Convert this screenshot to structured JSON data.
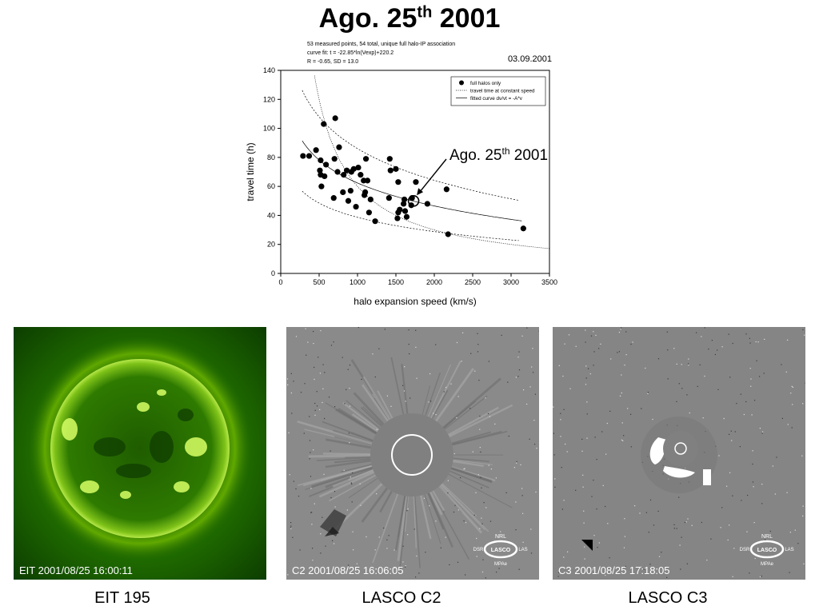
{
  "page": {
    "title_main": "Ago. 25",
    "title_sup": "th",
    "title_year": "2001"
  },
  "chart_data": {
    "type": "scatter",
    "header_lines": [
      "53 measured points, 54 total, unique full halo-IP association",
      "curve fit: t = -22.85*ln(Vexp)+220.2",
      "R = -0.65, SD = 13.0"
    ],
    "date": "03.09.2001",
    "xlabel": "halo expansion speed (km/s)",
    "ylabel": "travel time (h)",
    "xlim": [
      0,
      3500
    ],
    "ylim": [
      0,
      140
    ],
    "xticks": [
      0,
      500,
      1000,
      1500,
      2000,
      2500,
      3000,
      3500
    ],
    "yticks": [
      0,
      20,
      40,
      60,
      80,
      100,
      120,
      140
    ],
    "legend_position": "top-right",
    "legend": [
      "full halos only",
      "travel time at constant speed",
      "fitted curve dv/vt = -A*v"
    ],
    "annotation": {
      "text_main": "Ago. 25",
      "text_sup": "th",
      "text_year": "2001",
      "x": 1730,
      "y": 50
    },
    "points": [
      [
        290,
        81
      ],
      [
        370,
        81
      ],
      [
        460,
        85
      ],
      [
        510,
        71
      ],
      [
        520,
        78
      ],
      [
        520,
        68
      ],
      [
        530,
        60
      ],
      [
        560,
        103
      ],
      [
        570,
        67
      ],
      [
        590,
        75
      ],
      [
        690,
        52
      ],
      [
        700,
        79
      ],
      [
        710,
        107
      ],
      [
        740,
        70
      ],
      [
        760,
        87
      ],
      [
        810,
        56
      ],
      [
        820,
        68
      ],
      [
        860,
        71
      ],
      [
        880,
        50
      ],
      [
        910,
        57
      ],
      [
        920,
        70
      ],
      [
        950,
        72
      ],
      [
        980,
        46
      ],
      [
        1010,
        73
      ],
      [
        1040,
        68
      ],
      [
        1080,
        64
      ],
      [
        1090,
        54
      ],
      [
        1100,
        56
      ],
      [
        1110,
        79
      ],
      [
        1130,
        64
      ],
      [
        1150,
        42
      ],
      [
        1170,
        51
      ],
      [
        1230,
        36
      ],
      [
        1410,
        52
      ],
      [
        1420,
        79
      ],
      [
        1430,
        71
      ],
      [
        1500,
        72
      ],
      [
        1520,
        38
      ],
      [
        1530,
        63
      ],
      [
        1530,
        42
      ],
      [
        1550,
        44
      ],
      [
        1600,
        48
      ],
      [
        1610,
        51
      ],
      [
        1620,
        43
      ],
      [
        1640,
        39
      ],
      [
        1700,
        47
      ],
      [
        1710,
        52
      ],
      [
        1760,
        63
      ],
      [
        1910,
        48
      ],
      [
        2160,
        58
      ],
      [
        2180,
        27
      ],
      [
        3160,
        31
      ]
    ],
    "fit": {
      "a": -22.85,
      "b": 220.2
    },
    "constant_speed_k": 60000,
    "band_upper_k": 1.38,
    "band_lower_k": 0.62
  },
  "images": [
    {
      "stamp": "EIT 2001/08/25 16:00:11",
      "caption": "EIT 195"
    },
    {
      "stamp": "C2 2001/08/25 16:06:05",
      "caption": "LASCO C2"
    },
    {
      "stamp": "C3 2001/08/25 17:18:05",
      "caption": "LASCO C3"
    }
  ],
  "logo": {
    "top": "NRL",
    "center": "LASCO",
    "bottom": "MPAe",
    "left": "DSR",
    "right": "LAS"
  }
}
